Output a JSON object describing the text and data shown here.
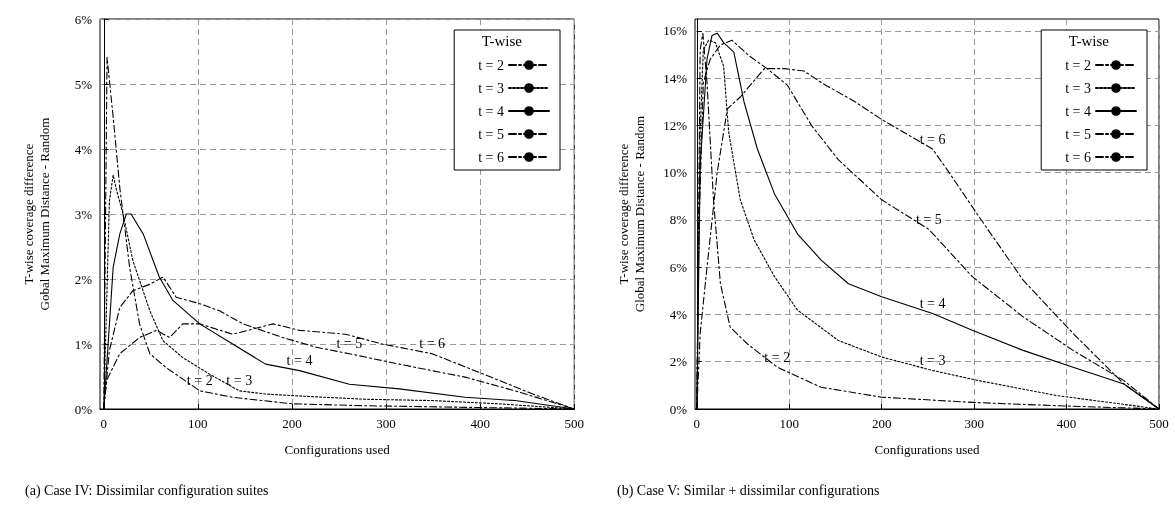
{
  "chart_data": [
    {
      "type": "line",
      "title": "(a) Case IV: Dissimilar configuration suites",
      "xlabel": "Configurations used",
      "ylabel": "T-wise coverage difference\nGobal Maximum Distance - Random",
      "legend_title": "T-wise",
      "legend": "top right",
      "grid": true,
      "xlim": [
        -4,
        500
      ],
      "xticks": [
        0,
        100,
        200,
        300,
        400,
        500
      ],
      "ylim": [
        0,
        6
      ],
      "yticks": [
        {
          "value": 0,
          "label": "0%"
        },
        {
          "value": 1,
          "label": "1%"
        },
        {
          "value": 2,
          "label": "2%"
        },
        {
          "value": 3,
          "label": "3%"
        },
        {
          "value": 4,
          "label": "4%"
        },
        {
          "value": 5,
          "label": "5%"
        },
        {
          "value": 6,
          "label": "6%"
        }
      ],
      "series": [
        {
          "name": "t = 2",
          "color": "#000000",
          "line_style": "dashed",
          "x": [
            0,
            3.5,
            10,
            17,
            27.5,
            38,
            49,
            66,
            102,
            137,
            200,
            278,
            500
          ],
          "values": [
            0,
            5.41,
            4.49,
            3.41,
            2.18,
            1.31,
            0.85,
            0.64,
            0.28,
            0.18,
            0.08,
            0.05,
            0
          ]
        },
        {
          "name": "t = 3",
          "color": "#000000",
          "line_style": "dotted",
          "x": [
            0,
            6,
            10,
            13,
            20.5,
            31,
            49,
            63,
            84,
            112,
            144,
            172,
            208,
            278,
            349,
            420,
            500
          ],
          "values": [
            0,
            3.2,
            3.6,
            3.4,
            3.0,
            2.28,
            1.51,
            1.05,
            0.79,
            0.54,
            0.28,
            0.23,
            0.2,
            0.15,
            0.13,
            0.08,
            0
          ]
        },
        {
          "name": "t = 4",
          "color": "#000000",
          "line_style": "solid",
          "x": [
            0,
            3,
            10,
            17,
            24,
            29,
            42,
            59,
            73.5,
            102,
            137,
            172,
            208,
            261,
            314,
            384,
            437,
            500
          ],
          "values": [
            0,
            0.64,
            2.18,
            2.69,
            3.0,
            3.0,
            2.69,
            2.03,
            1.67,
            1.31,
            1.0,
            0.69,
            0.59,
            0.38,
            0.31,
            0.18,
            0.13,
            0
          ]
        },
        {
          "name": "t = 5",
          "color": "#000000",
          "line_style": "dashed",
          "x": [
            0,
            6,
            17,
            31,
            49,
            63,
            77,
            102,
            123,
            148,
            190,
            226,
            261,
            314,
            384,
            437,
            500
          ],
          "values": [
            0,
            0.9,
            1.56,
            1.82,
            1.92,
            2.03,
            1.72,
            1.62,
            1.51,
            1.31,
            1.1,
            0.95,
            0.85,
            0.69,
            0.49,
            0.28,
            0
          ]
        },
        {
          "name": "t = 6",
          "color": "#000000",
          "line_style": "dashed",
          "x": [
            0,
            3,
            17,
            38,
            56,
            70,
            84,
            102,
            137,
            180,
            208,
            257,
            296,
            349,
            403,
            456,
            500
          ],
          "values": [
            0,
            0.44,
            0.85,
            1.1,
            1.21,
            1.1,
            1.31,
            1.31,
            1.15,
            1.31,
            1.21,
            1.15,
            1.0,
            0.85,
            0.54,
            0.23,
            0
          ]
        }
      ],
      "annotations": [
        {
          "text": "t = 2",
          "x": 102,
          "y": 0.28
        },
        {
          "text": "t = 3",
          "x": 144,
          "y": 0.28
        },
        {
          "text": "t = 4",
          "x": 208,
          "y": 0.59
        },
        {
          "text": "t = 5",
          "x": 261,
          "y": 0.85
        },
        {
          "text": "t = 6",
          "x": 349,
          "y": 0.85
        }
      ]
    },
    {
      "type": "line",
      "title": "(b) Case V: Similar + dissimilar configurations",
      "xlabel": "Configurations used",
      "ylabel": "T-wise coverage difference\nGlobal Maximum Distance - Random",
      "legend_title": "T-wise",
      "legend": "top right",
      "grid": true,
      "xlim": [
        -2,
        500
      ],
      "xticks": [
        0,
        100,
        200,
        300,
        400,
        500
      ],
      "ylim": [
        0,
        16.5
      ],
      "yticks": [
        {
          "value": 0,
          "label": "0%"
        },
        {
          "value": 2,
          "label": "2%"
        },
        {
          "value": 4,
          "label": "4%"
        },
        {
          "value": 6,
          "label": "6%"
        },
        {
          "value": 8,
          "label": "8%"
        },
        {
          "value": 10,
          "label": "10%"
        },
        {
          "value": 12,
          "label": "12%"
        },
        {
          "value": 14,
          "label": "14%"
        },
        {
          "value": 16,
          "label": "16%"
        }
      ],
      "series": [
        {
          "name": "t = 2",
          "color": "#000000",
          "line_style": "dashed",
          "x": [
            0,
            3.6,
            6.5,
            11,
            18,
            25.5,
            36,
            54.5,
            87,
            134.5,
            200,
            298,
            389,
            500
          ],
          "values": [
            0,
            15.2,
            15.9,
            13.8,
            8.85,
            5.3,
            3.47,
            2.76,
            1.77,
            0.92,
            0.5,
            0.28,
            0.14,
            0
          ]
        },
        {
          "name": "t = 3",
          "color": "#000000",
          "line_style": "dotted",
          "x": [
            0,
            3.6,
            7,
            12.7,
            20,
            29,
            34.5,
            47,
            62,
            84,
            109,
            153,
            200,
            255,
            305,
            389,
            500
          ],
          "values": [
            0,
            11.7,
            15.2,
            15.6,
            15.5,
            14.5,
            11.7,
            8.85,
            7.15,
            5.6,
            4.18,
            2.9,
            2.2,
            1.63,
            1.2,
            0.57,
            0
          ]
        },
        {
          "name": "t = 4",
          "color": "#000000",
          "line_style": "solid",
          "x": [
            0,
            3.6,
            11,
            16.4,
            22,
            29,
            40,
            51,
            65.5,
            84,
            109,
            134.5,
            164,
            200,
            255,
            298,
            353,
            407,
            462,
            500
          ],
          "values": [
            0,
            10.3,
            14.8,
            15.8,
            15.9,
            15.5,
            15.1,
            13.0,
            11.0,
            9.1,
            7.4,
            6.3,
            5.3,
            4.75,
            4.04,
            3.33,
            2.48,
            1.77,
            1.06,
            0
          ]
        },
        {
          "name": "t = 5",
          "color": "#000000",
          "line_style": "dashed",
          "x": [
            0,
            2,
            7,
            14.5,
            25.5,
            38,
            58,
            76,
            98,
            124,
            153,
            200,
            251,
            298,
            353,
            407,
            462,
            500
          ],
          "values": [
            0,
            7.4,
            13.8,
            14.8,
            15.4,
            15.6,
            14.9,
            14.4,
            13.7,
            12.0,
            10.55,
            8.85,
            7.6,
            5.6,
            3.9,
            2.48,
            1.2,
            0
          ]
        },
        {
          "name": "t = 6",
          "color": "#000000",
          "line_style": "dashed",
          "x": [
            0,
            3.6,
            11,
            22,
            33,
            47,
            73,
            95,
            116,
            135,
            171,
            200,
            255,
            273,
            305,
            353,
            407,
            462,
            500
          ],
          "values": [
            0,
            3.2,
            6.0,
            10.0,
            12.7,
            13.2,
            14.4,
            14.4,
            14.3,
            13.8,
            13.0,
            12.25,
            11.0,
            10.0,
            8.15,
            5.45,
            3.2,
            1.06,
            0
          ]
        }
      ],
      "annotations": [
        {
          "text": "t = 2",
          "x": 87,
          "y": 1.77
        },
        {
          "text": "t = 3",
          "x": 255,
          "y": 1.63
        },
        {
          "text": "t = 4",
          "x": 255,
          "y": 4.04
        },
        {
          "text": "t = 5",
          "x": 251,
          "y": 7.6
        },
        {
          "text": "t = 6",
          "x": 255,
          "y": 11.0
        }
      ]
    }
  ]
}
